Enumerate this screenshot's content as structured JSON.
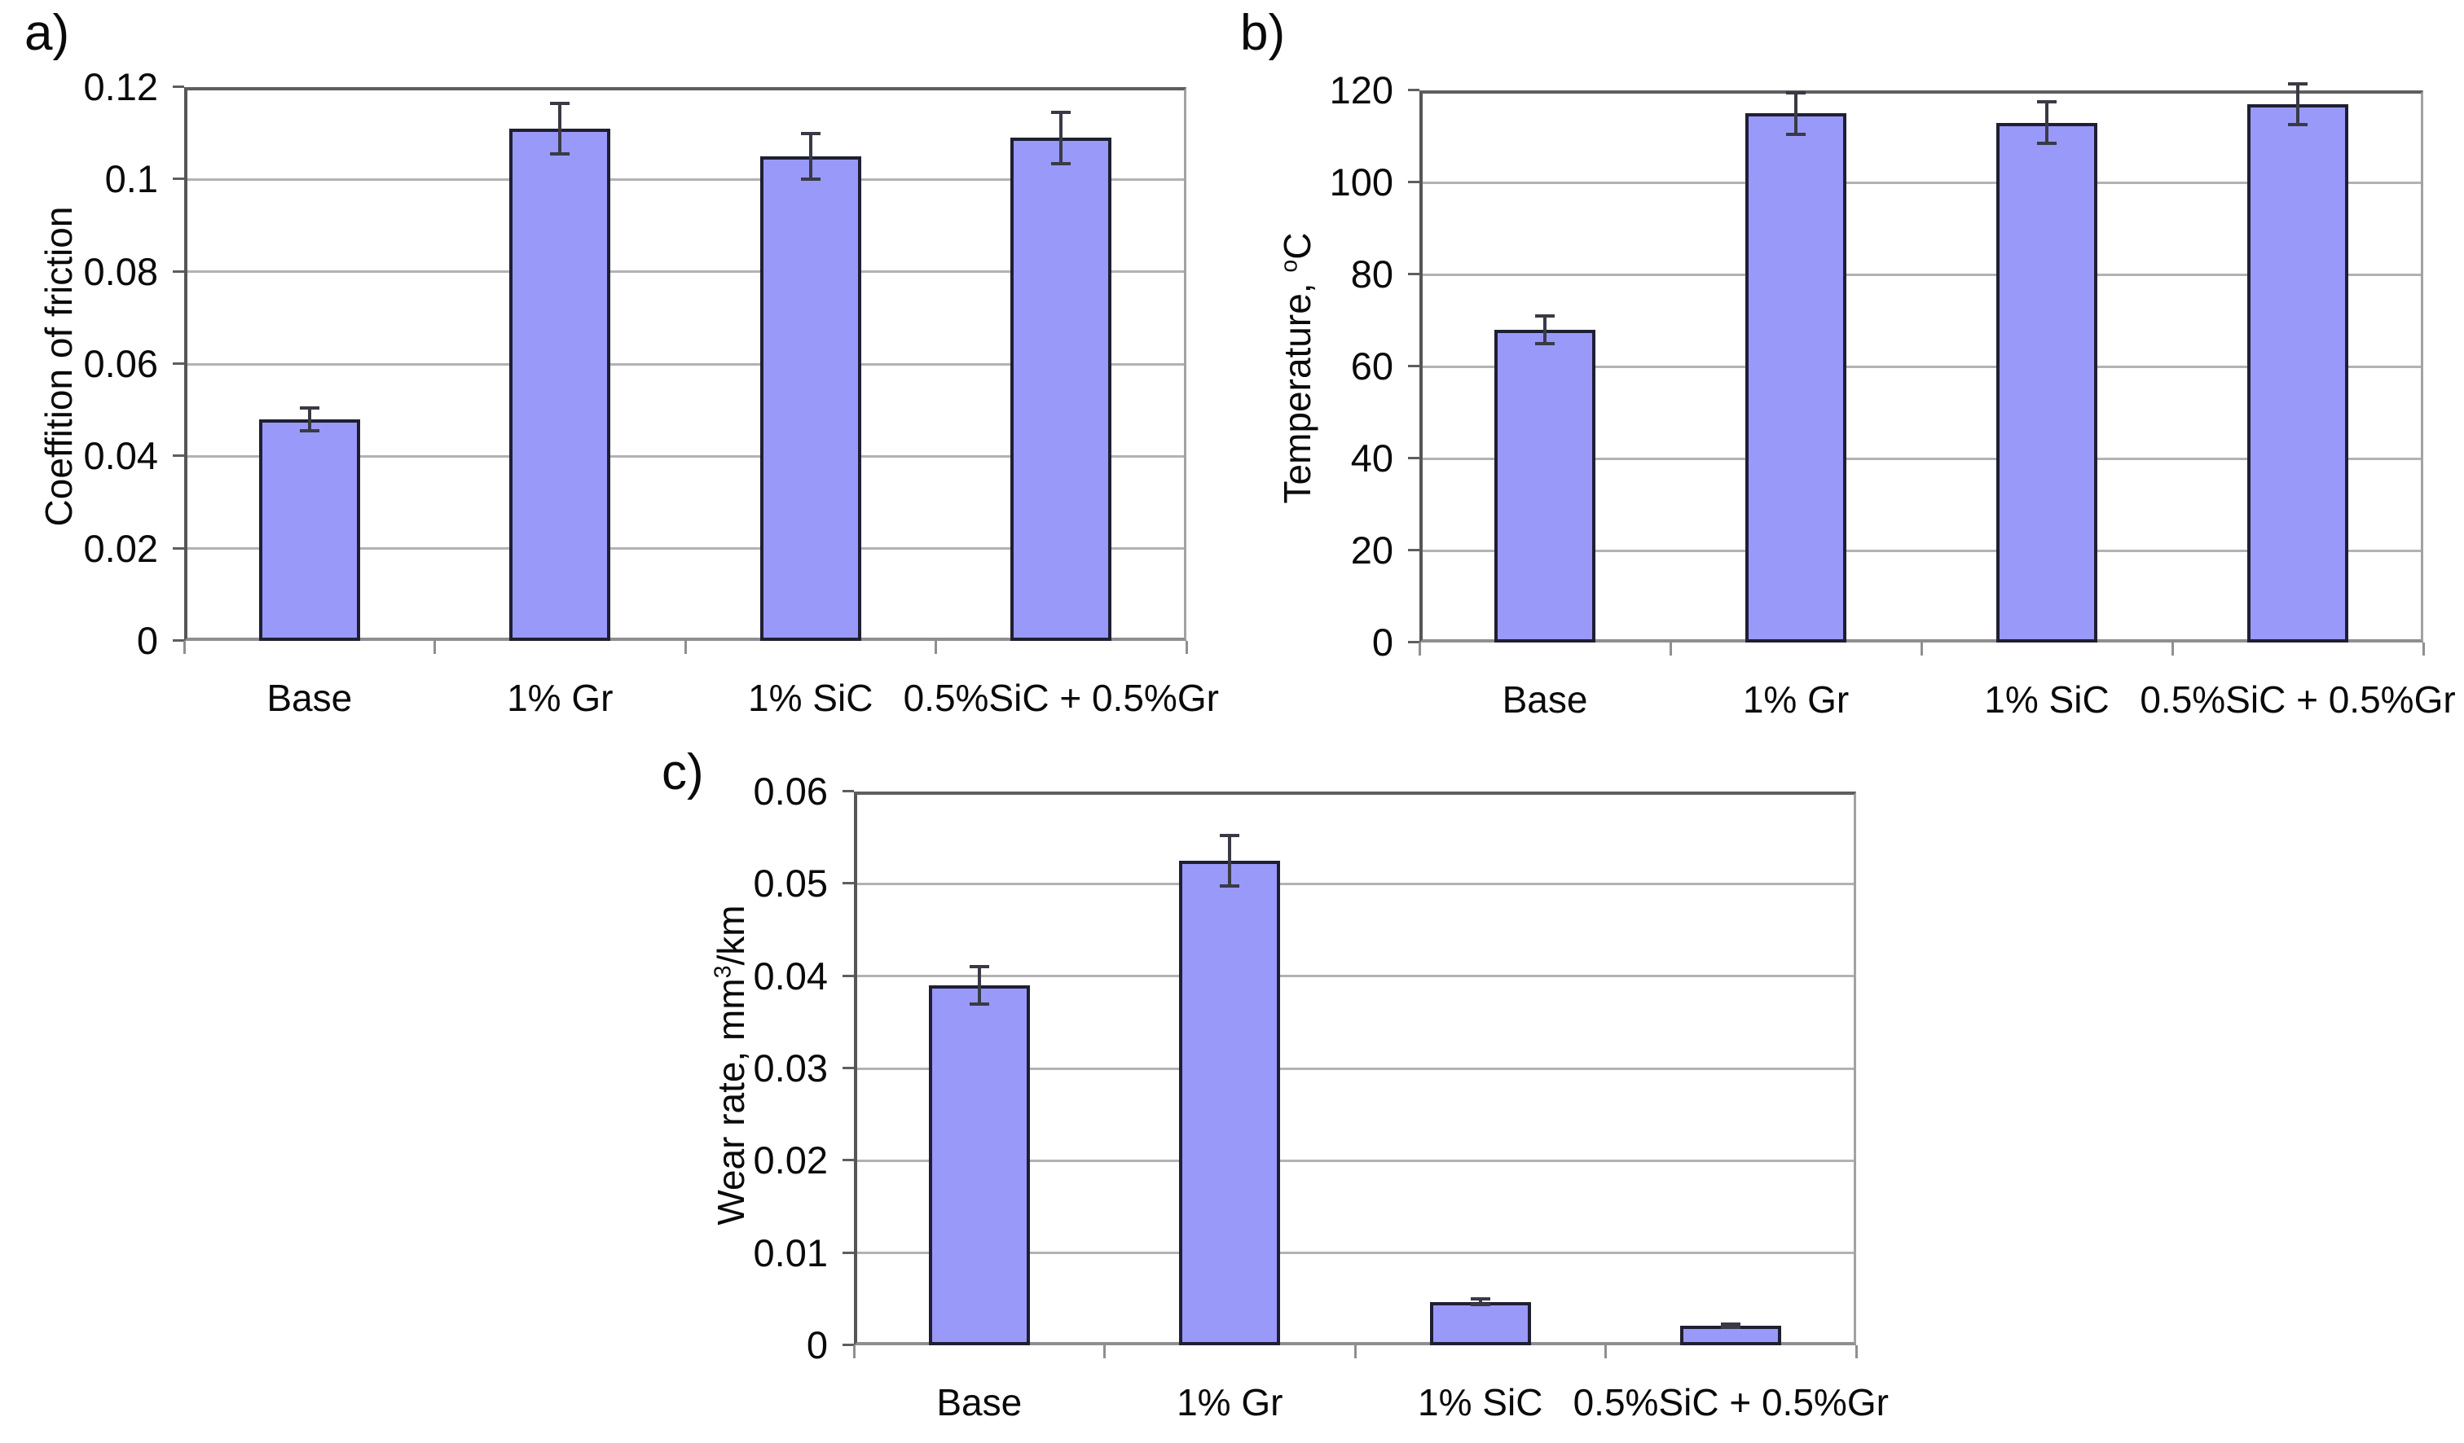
{
  "figure": {
    "background": "#ffffff",
    "panel_count": 3
  },
  "style": {
    "bar_fill": "#9999fa",
    "bar_border": "#1f1f33",
    "grid_color": "#b2b2b2",
    "axis_color": "#5e5e5e",
    "error_color": "#3a3a46",
    "text_color": "#0a0a0a"
  },
  "chart_data": [
    {
      "id": "a",
      "panel_label": "a)",
      "type": "bar",
      "title": "",
      "xlabel": "",
      "ylabel": "Coeffition of friction",
      "ylabel_parts": [
        {
          "t": "Coeffition of friction"
        }
      ],
      "categories": [
        "Base",
        "1% Gr",
        "1% SiC",
        "0.5%SiC + 0.5%Gr"
      ],
      "values": [
        0.048,
        0.111,
        0.105,
        0.109
      ],
      "errors": [
        0.0025,
        0.0055,
        0.005,
        0.0055
      ],
      "ylim": [
        0,
        0.12
      ],
      "ytick_labels": [
        "0",
        "0.02",
        "0.04",
        "0.06",
        "0.08",
        "0.1",
        "0.12"
      ],
      "grid": true,
      "legend": "none"
    },
    {
      "id": "b",
      "panel_label": "b)",
      "type": "bar",
      "title": "",
      "xlabel": "",
      "ylabel": "Temperature, °C",
      "ylabel_parts": [
        {
          "t": "Temperature, "
        },
        {
          "t": "o",
          "sup": true
        },
        {
          "t": "C"
        }
      ],
      "categories": [
        "Base",
        "1% Gr",
        "1% SiC",
        "0.5%SiC + 0.5%Gr"
      ],
      "values": [
        68,
        115,
        113,
        117
      ],
      "errors": [
        3,
        4.5,
        4.5,
        4.5
      ],
      "ylim": [
        0,
        120
      ],
      "ytick_labels": [
        "0",
        "20",
        "40",
        "60",
        "80",
        "100",
        "120"
      ],
      "grid": true,
      "legend": "none"
    },
    {
      "id": "c",
      "panel_label": "c)",
      "type": "bar",
      "title": "",
      "xlabel": "",
      "ylabel": "Wear rate, mm³/km",
      "ylabel_parts": [
        {
          "t": "Wear rate, mm"
        },
        {
          "t": "3",
          "sup": true
        },
        {
          "t": "/km"
        }
      ],
      "categories": [
        "Base",
        "1% Gr",
        "1% SiC",
        "0.5%SiC + 0.5%Gr"
      ],
      "values": [
        0.039,
        0.0525,
        0.0047,
        0.0021
      ],
      "errors": [
        0.002,
        0.0027,
        0.0003,
        0.0002
      ],
      "ylim": [
        0,
        0.06
      ],
      "ytick_labels": [
        "0",
        "0.01",
        "0.02",
        "0.03",
        "0.04",
        "0.05",
        "0.06"
      ],
      "grid": true,
      "legend": "none"
    }
  ]
}
